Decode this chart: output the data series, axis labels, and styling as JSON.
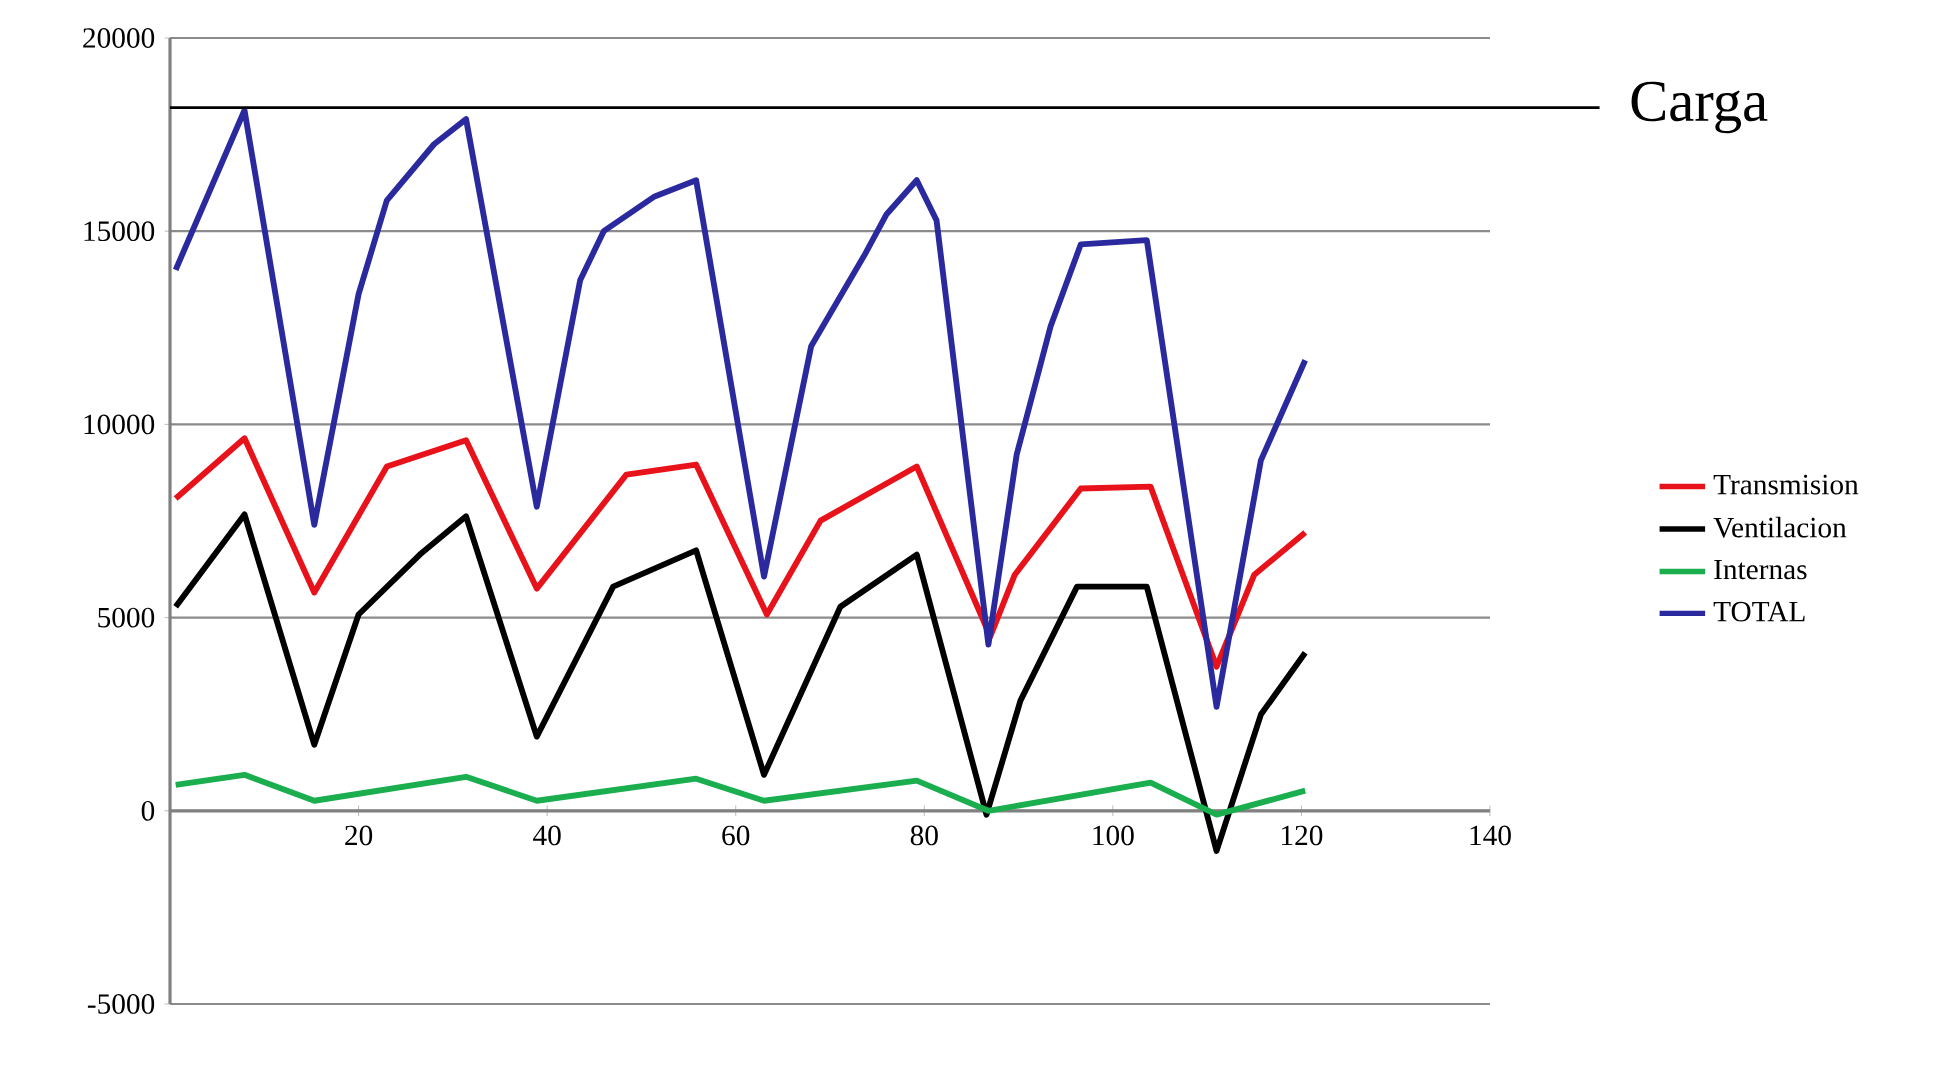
{
  "chart_data": {
    "type": "line",
    "x": [
      0.6,
      7.9,
      15.3,
      20,
      23,
      28,
      31.4,
      38.9,
      43.5,
      46,
      51.4,
      55.8,
      63,
      68,
      73.7,
      76,
      79.2,
      81.3,
      86.8,
      89.8,
      93.4,
      96.6,
      103.6,
      111,
      115.7,
      120.4
    ],
    "series": [
      {
        "name": "Transmision",
        "color": "#e8121a",
        "x": [
          0.6,
          7.9,
          15.3,
          23,
          31.4,
          38.9,
          48.4,
          55.8,
          63.3,
          69,
          79.2,
          87,
          89.6,
          96.6,
          104,
          111,
          115,
          120.4
        ],
        "values": [
          8080,
          9640,
          5650,
          8910,
          9590,
          5750,
          8700,
          8960,
          5080,
          7510,
          8910,
          4510,
          6110,
          8340,
          8390,
          3730,
          6110,
          7200
        ]
      },
      {
        "name": "Ventilacion",
        "color": "#000000",
        "x": [
          0.6,
          7.9,
          15.3,
          20,
          26.5,
          31.4,
          38.9,
          47,
          55.8,
          63,
          71.1,
          79.2,
          86.6,
          90.2,
          96.2,
          103.6,
          111,
          115.7,
          120.4
        ],
        "values": [
          5280,
          7670,
          1710,
          5080,
          6630,
          7620,
          1920,
          5800,
          6740,
          930,
          5280,
          6630,
          -100,
          2850,
          5800,
          5800,
          -1040,
          2490,
          4090
        ]
      },
      {
        "name": "Internas",
        "color": "#1aae4f",
        "x": [
          0.6,
          7.9,
          15.3,
          31.4,
          38.9,
          55.8,
          63,
          79.2,
          86.8,
          104,
          111,
          120.4
        ],
        "values": [
          670,
          930,
          260,
          880,
          260,
          830,
          260,
          780,
          0,
          730,
          -100,
          520
        ]
      },
      {
        "name": "TOTAL",
        "color": "#2a2a9e",
        "values": [
          14000,
          18130,
          7400,
          13370,
          15800,
          17250,
          17900,
          7870,
          13730,
          15000,
          15900,
          16320,
          6060,
          12020,
          14400,
          15440,
          16320,
          15280,
          4300,
          9220,
          12540,
          14660,
          14770,
          2690,
          9070,
          11660
        ]
      }
    ],
    "xlim": [
      0,
      140
    ],
    "xticks": [
      20,
      40,
      60,
      80,
      100,
      120,
      140
    ],
    "ylim": [
      -5000,
      20000
    ],
    "yticks": [
      -5000,
      0,
      5000,
      10000,
      15000,
      20000
    ],
    "grid": "y",
    "legend": "right",
    "ref_lines": [
      {
        "axis": "y",
        "value": 18200,
        "label": "Carga",
        "color": "#000000"
      }
    ]
  }
}
